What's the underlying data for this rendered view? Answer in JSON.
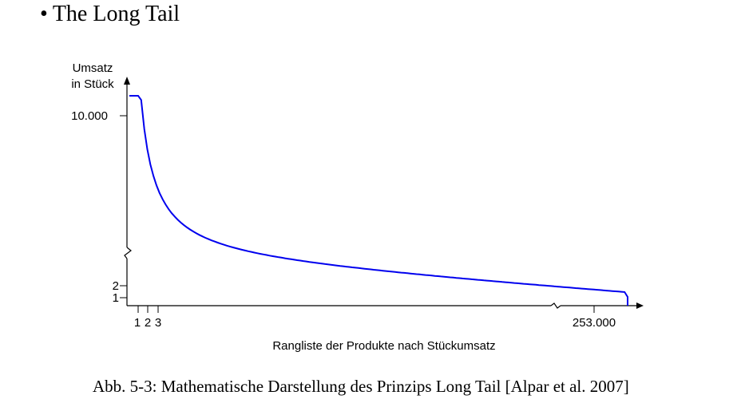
{
  "heading": {
    "bullet": "•",
    "text": "The Long Tail"
  },
  "chart_data": {
    "type": "line",
    "ylabel_line1": "Umsatz",
    "ylabel_line2": "in Stück",
    "xlabel": "Rangliste der Produkte nach Stückumsatz",
    "y_ticks": [
      {
        "value": 10000,
        "label": "10.000"
      },
      {
        "value": 2,
        "label": "2"
      },
      {
        "value": 1,
        "label": "1"
      }
    ],
    "x_ticks": [
      {
        "value": 1,
        "label": "1"
      },
      {
        "value": 2,
        "label": "2"
      },
      {
        "value": 3,
        "label": "3"
      },
      {
        "value": 253000,
        "label": "253.000"
      }
    ],
    "axis_breaks": [
      "y",
      "x"
    ],
    "series": [
      {
        "color": "#0000ee",
        "shape": "long-tail",
        "points": [
          {
            "rank": 1,
            "units": 10000
          },
          {
            "rank": 253000,
            "units": 1
          }
        ]
      }
    ],
    "axis_color": "#000000",
    "grid": false
  },
  "caption": "Abb. 5-3: Mathematische Darstellung des Prinzips Long Tail [Alpar et al. 2007]"
}
